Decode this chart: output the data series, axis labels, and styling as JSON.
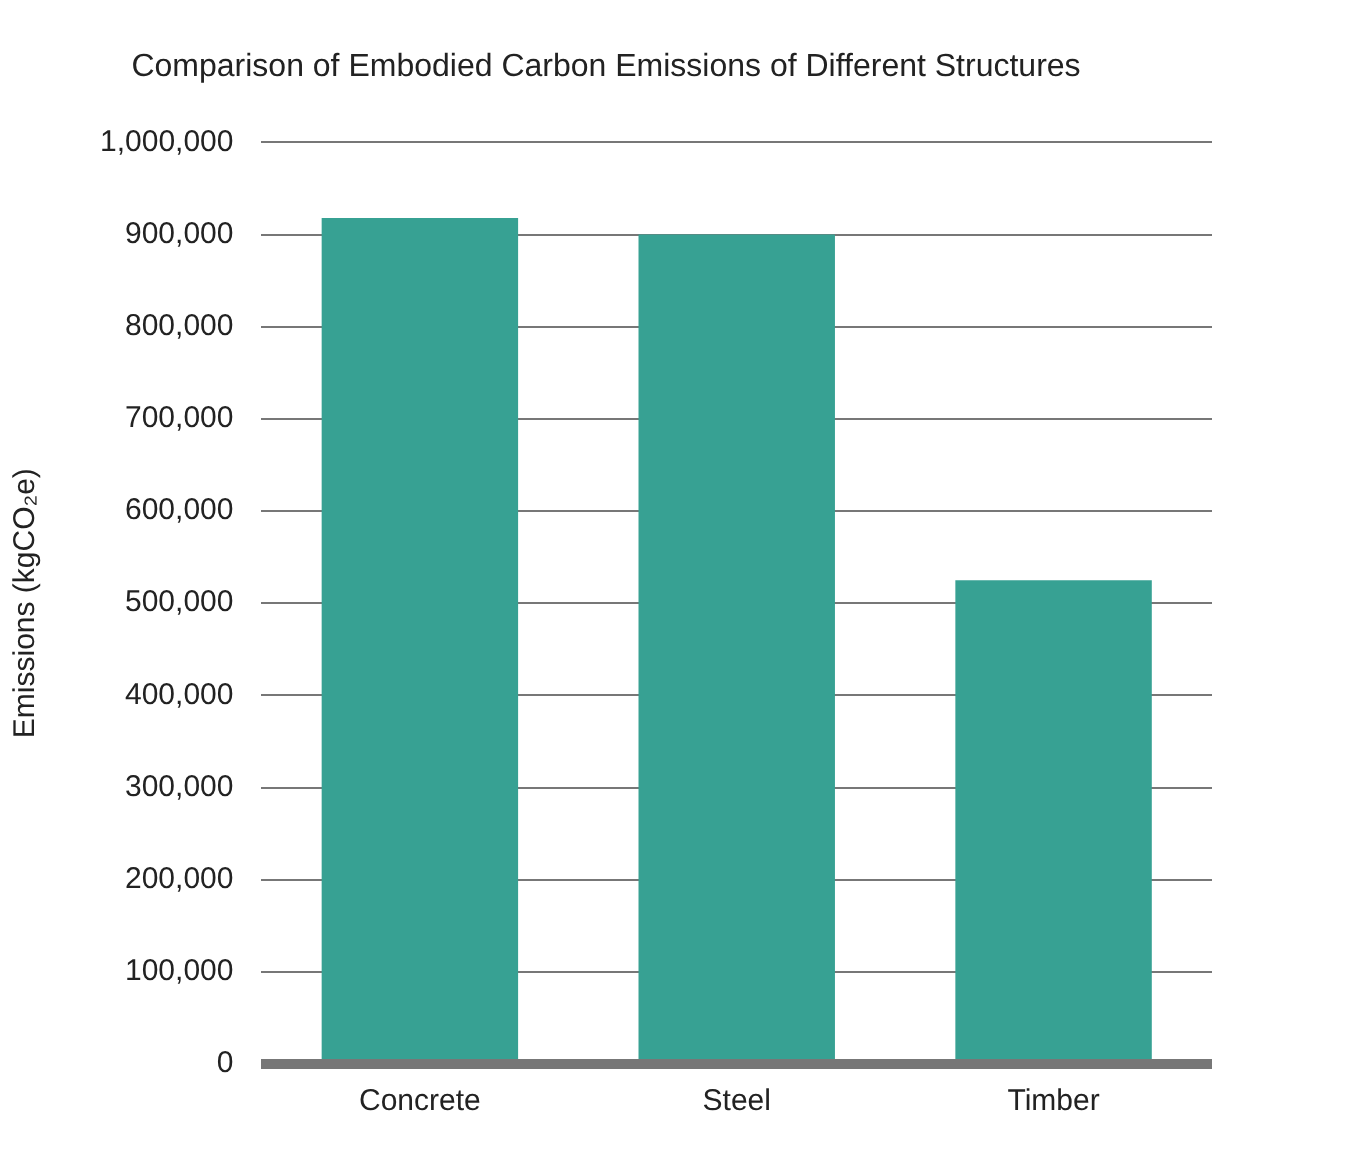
{
  "chart_data": {
    "type": "bar",
    "title": "Comparison of Embodied Carbon Emissions of Different Structures",
    "ylabel": "Emissions (kgCO₂e)",
    "categories": [
      "Concrete",
      "Steel",
      "Timber"
    ],
    "values": [
      918000,
      900000,
      525000
    ],
    "color": "#37a193",
    "ylim": [
      0,
      1000000
    ],
    "yticks": [
      0,
      {
        "value": 100000,
        "label": "100,000"
      },
      {
        "value": 200000,
        "label": "200,000"
      },
      {
        "value": 300000,
        "label": "300,000"
      },
      {
        "value": 400000,
        "label": "400,000"
      },
      {
        "value": 500000,
        "label": "500,000"
      },
      {
        "value": 600000,
        "label": "600,000"
      },
      {
        "value": 700000,
        "label": "700,000"
      },
      {
        "value": 800000,
        "label": "800,000"
      },
      {
        "value": 900000,
        "label": "900,000"
      },
      {
        "value": 1000000,
        "label": "1,000,000"
      }
    ],
    "grid": "y",
    "legend": false
  }
}
